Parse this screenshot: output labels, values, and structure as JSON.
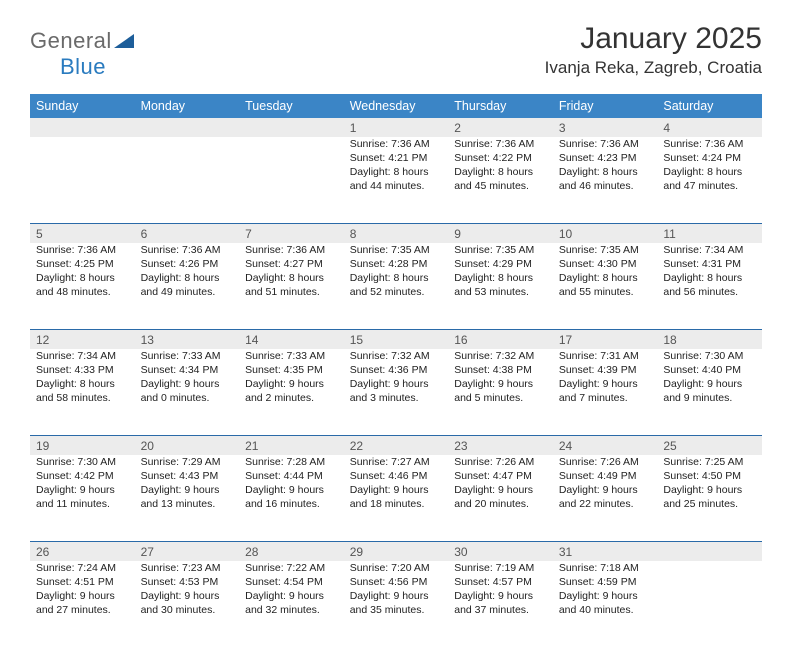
{
  "logo": {
    "part1": "General",
    "part2": "Blue"
  },
  "title": "January 2025",
  "location": "Ivanja Reka, Zagreb, Croatia",
  "colors": {
    "header_bg": "#3b85c6",
    "header_text": "#ffffff",
    "daynum_bg": "#ececec",
    "daynum_text": "#555555",
    "rule": "#2a6aa8",
    "body_text": "#222222",
    "logo_general": "#6a6a6a",
    "logo_blue": "#2a7bbf",
    "logo_triangle": "#1d5e9a"
  },
  "day_headers": [
    "Sunday",
    "Monday",
    "Tuesday",
    "Wednesday",
    "Thursday",
    "Friday",
    "Saturday"
  ],
  "weeks": [
    [
      {
        "num": "",
        "lines": []
      },
      {
        "num": "",
        "lines": []
      },
      {
        "num": "",
        "lines": []
      },
      {
        "num": "1",
        "lines": [
          "Sunrise: 7:36 AM",
          "Sunset: 4:21 PM",
          "Daylight: 8 hours",
          "and 44 minutes."
        ]
      },
      {
        "num": "2",
        "lines": [
          "Sunrise: 7:36 AM",
          "Sunset: 4:22 PM",
          "Daylight: 8 hours",
          "and 45 minutes."
        ]
      },
      {
        "num": "3",
        "lines": [
          "Sunrise: 7:36 AM",
          "Sunset: 4:23 PM",
          "Daylight: 8 hours",
          "and 46 minutes."
        ]
      },
      {
        "num": "4",
        "lines": [
          "Sunrise: 7:36 AM",
          "Sunset: 4:24 PM",
          "Daylight: 8 hours",
          "and 47 minutes."
        ]
      }
    ],
    [
      {
        "num": "5",
        "lines": [
          "Sunrise: 7:36 AM",
          "Sunset: 4:25 PM",
          "Daylight: 8 hours",
          "and 48 minutes."
        ]
      },
      {
        "num": "6",
        "lines": [
          "Sunrise: 7:36 AM",
          "Sunset: 4:26 PM",
          "Daylight: 8 hours",
          "and 49 minutes."
        ]
      },
      {
        "num": "7",
        "lines": [
          "Sunrise: 7:36 AM",
          "Sunset: 4:27 PM",
          "Daylight: 8 hours",
          "and 51 minutes."
        ]
      },
      {
        "num": "8",
        "lines": [
          "Sunrise: 7:35 AM",
          "Sunset: 4:28 PM",
          "Daylight: 8 hours",
          "and 52 minutes."
        ]
      },
      {
        "num": "9",
        "lines": [
          "Sunrise: 7:35 AM",
          "Sunset: 4:29 PM",
          "Daylight: 8 hours",
          "and 53 minutes."
        ]
      },
      {
        "num": "10",
        "lines": [
          "Sunrise: 7:35 AM",
          "Sunset: 4:30 PM",
          "Daylight: 8 hours",
          "and 55 minutes."
        ]
      },
      {
        "num": "11",
        "lines": [
          "Sunrise: 7:34 AM",
          "Sunset: 4:31 PM",
          "Daylight: 8 hours",
          "and 56 minutes."
        ]
      }
    ],
    [
      {
        "num": "12",
        "lines": [
          "Sunrise: 7:34 AM",
          "Sunset: 4:33 PM",
          "Daylight: 8 hours",
          "and 58 minutes."
        ]
      },
      {
        "num": "13",
        "lines": [
          "Sunrise: 7:33 AM",
          "Sunset: 4:34 PM",
          "Daylight: 9 hours",
          "and 0 minutes."
        ]
      },
      {
        "num": "14",
        "lines": [
          "Sunrise: 7:33 AM",
          "Sunset: 4:35 PM",
          "Daylight: 9 hours",
          "and 2 minutes."
        ]
      },
      {
        "num": "15",
        "lines": [
          "Sunrise: 7:32 AM",
          "Sunset: 4:36 PM",
          "Daylight: 9 hours",
          "and 3 minutes."
        ]
      },
      {
        "num": "16",
        "lines": [
          "Sunrise: 7:32 AM",
          "Sunset: 4:38 PM",
          "Daylight: 9 hours",
          "and 5 minutes."
        ]
      },
      {
        "num": "17",
        "lines": [
          "Sunrise: 7:31 AM",
          "Sunset: 4:39 PM",
          "Daylight: 9 hours",
          "and 7 minutes."
        ]
      },
      {
        "num": "18",
        "lines": [
          "Sunrise: 7:30 AM",
          "Sunset: 4:40 PM",
          "Daylight: 9 hours",
          "and 9 minutes."
        ]
      }
    ],
    [
      {
        "num": "19",
        "lines": [
          "Sunrise: 7:30 AM",
          "Sunset: 4:42 PM",
          "Daylight: 9 hours",
          "and 11 minutes."
        ]
      },
      {
        "num": "20",
        "lines": [
          "Sunrise: 7:29 AM",
          "Sunset: 4:43 PM",
          "Daylight: 9 hours",
          "and 13 minutes."
        ]
      },
      {
        "num": "21",
        "lines": [
          "Sunrise: 7:28 AM",
          "Sunset: 4:44 PM",
          "Daylight: 9 hours",
          "and 16 minutes."
        ]
      },
      {
        "num": "22",
        "lines": [
          "Sunrise: 7:27 AM",
          "Sunset: 4:46 PM",
          "Daylight: 9 hours",
          "and 18 minutes."
        ]
      },
      {
        "num": "23",
        "lines": [
          "Sunrise: 7:26 AM",
          "Sunset: 4:47 PM",
          "Daylight: 9 hours",
          "and 20 minutes."
        ]
      },
      {
        "num": "24",
        "lines": [
          "Sunrise: 7:26 AM",
          "Sunset: 4:49 PM",
          "Daylight: 9 hours",
          "and 22 minutes."
        ]
      },
      {
        "num": "25",
        "lines": [
          "Sunrise: 7:25 AM",
          "Sunset: 4:50 PM",
          "Daylight: 9 hours",
          "and 25 minutes."
        ]
      }
    ],
    [
      {
        "num": "26",
        "lines": [
          "Sunrise: 7:24 AM",
          "Sunset: 4:51 PM",
          "Daylight: 9 hours",
          "and 27 minutes."
        ]
      },
      {
        "num": "27",
        "lines": [
          "Sunrise: 7:23 AM",
          "Sunset: 4:53 PM",
          "Daylight: 9 hours",
          "and 30 minutes."
        ]
      },
      {
        "num": "28",
        "lines": [
          "Sunrise: 7:22 AM",
          "Sunset: 4:54 PM",
          "Daylight: 9 hours",
          "and 32 minutes."
        ]
      },
      {
        "num": "29",
        "lines": [
          "Sunrise: 7:20 AM",
          "Sunset: 4:56 PM",
          "Daylight: 9 hours",
          "and 35 minutes."
        ]
      },
      {
        "num": "30",
        "lines": [
          "Sunrise: 7:19 AM",
          "Sunset: 4:57 PM",
          "Daylight: 9 hours",
          "and 37 minutes."
        ]
      },
      {
        "num": "31",
        "lines": [
          "Sunrise: 7:18 AM",
          "Sunset: 4:59 PM",
          "Daylight: 9 hours",
          "and 40 minutes."
        ]
      },
      {
        "num": "",
        "lines": []
      }
    ]
  ]
}
